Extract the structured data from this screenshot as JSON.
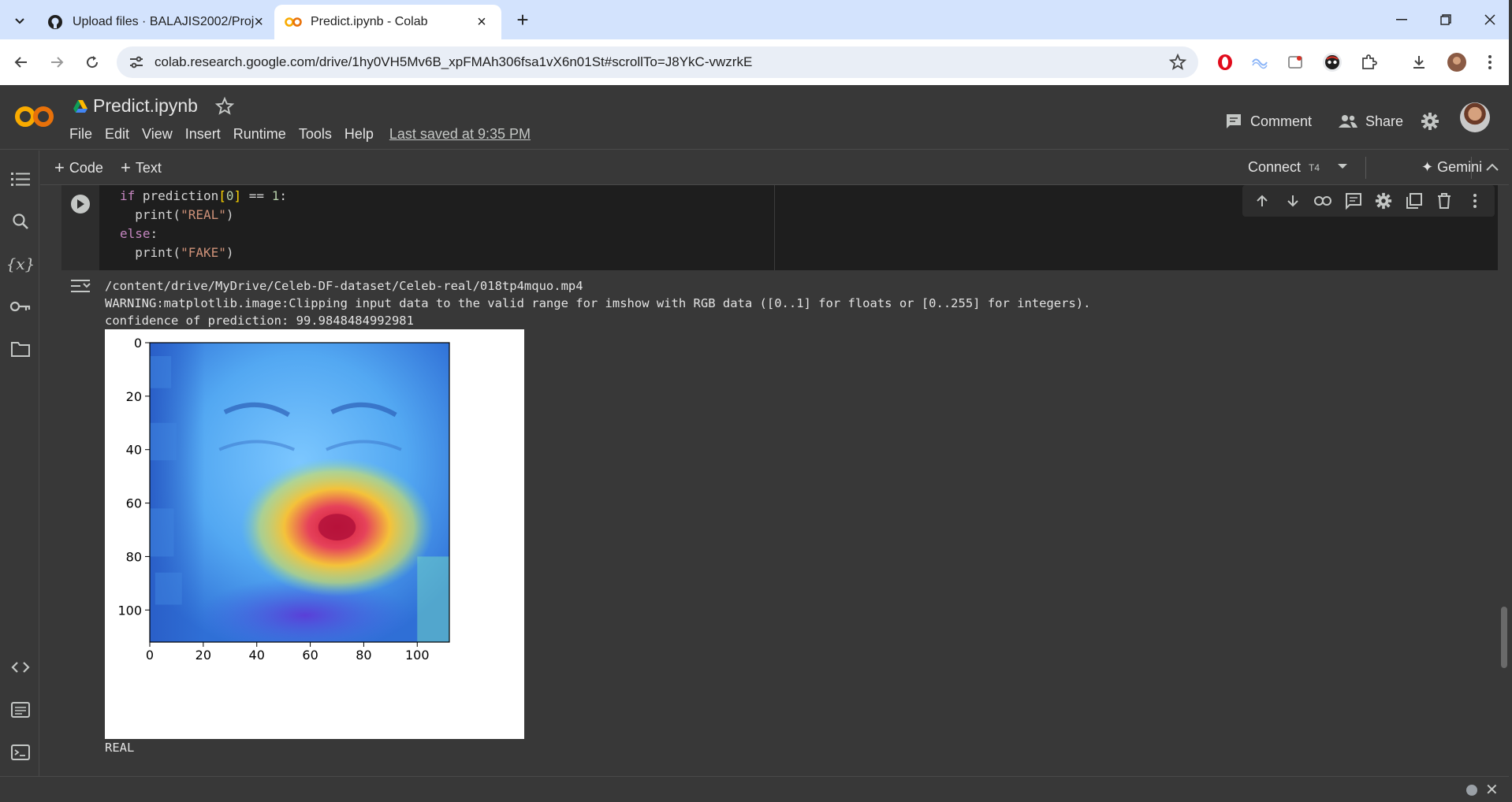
{
  "browser": {
    "tabs": [
      {
        "title": "Upload files · BALAJIS2002/Proj",
        "icon": "github-icon",
        "active": false
      },
      {
        "title": "Predict.ipynb - Colab",
        "icon": "colab-icon",
        "active": true
      }
    ],
    "new_tab": "+",
    "url": "colab.research.google.com/drive/1hy0VH5Mv6B_xpFMAh306fsa1vX6n01St#scrollTo=J8YkC-vwzrkE"
  },
  "colab": {
    "notebook_title": "Predict.ipynb",
    "menu": [
      "File",
      "Edit",
      "View",
      "Insert",
      "Runtime",
      "Tools",
      "Help"
    ],
    "last_saved": "Last saved at 9:35 PM",
    "comment_label": "Comment",
    "share_label": "Share"
  },
  "nbbar": {
    "add_code": "Code",
    "add_text": "Text",
    "connect": "Connect",
    "runtime": "T4",
    "gemini": "Gemini"
  },
  "cell": {
    "code_lines": [
      "if prediction[0] == 1:",
      "  print(\"REAL\")",
      "else:",
      "  print(\"FAKE\")"
    ]
  },
  "output": {
    "path": "/content/drive/MyDrive/Celeb-DF-dataset/Celeb-real/018tp4mquo.mp4",
    "warning": "WARNING:matplotlib.image:Clipping input data to the valid range for imshow with RGB data ([0..1] for floats or [0..255] for integers).",
    "confidence": "confidence of prediction: 99.9848484992981",
    "result": "REAL"
  },
  "chart_data": {
    "type": "heatmap",
    "title": "",
    "xlabel": "",
    "ylabel": "",
    "xlim": [
      0,
      112
    ],
    "ylim": [
      112,
      0
    ],
    "xticks": [
      0,
      20,
      40,
      60,
      80,
      100
    ],
    "yticks": [
      0,
      20,
      40,
      60,
      80,
      100
    ],
    "hotspot": {
      "x": 70,
      "y": 69
    }
  }
}
